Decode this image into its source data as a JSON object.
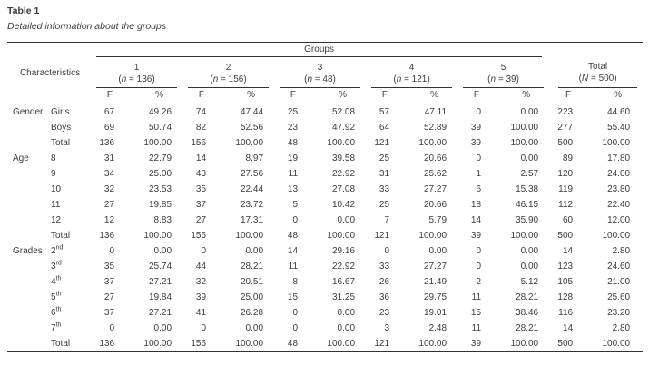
{
  "title": "Table 1",
  "caption": "Detailed information about the groups",
  "header": {
    "characteristics": "Characteristics",
    "groups_label": "Groups",
    "groups": [
      {
        "number": "1",
        "n_parts": [
          "(",
          "n",
          " = 136)"
        ]
      },
      {
        "number": "2",
        "n_parts": [
          "(",
          "n",
          " = 156)"
        ]
      },
      {
        "number": "3",
        "n_parts": [
          "(",
          "n",
          " = 48)"
        ]
      },
      {
        "number": "4",
        "n_parts": [
          "(",
          "n",
          " = 121)"
        ]
      },
      {
        "number": "5",
        "n_parts": [
          "(",
          "n",
          " = 39)"
        ]
      }
    ],
    "total": {
      "label": "Total",
      "n_parts": [
        "(",
        "N",
        " = 500)"
      ]
    },
    "f_label": "F",
    "pct_label": "%"
  },
  "sections": [
    {
      "name": "Gender",
      "rows": [
        {
          "label": "Girls",
          "values": [
            "67",
            "49.26",
            "74",
            "47.44",
            "25",
            "52.08",
            "57",
            "47.11",
            "0",
            "0.00",
            "223",
            "44.60"
          ]
        },
        {
          "label": "Boys",
          "values": [
            "69",
            "50.74",
            "82",
            "52.56",
            "23",
            "47.92",
            "64",
            "52.89",
            "39",
            "100.00",
            "277",
            "55.40"
          ]
        },
        {
          "label": "Total",
          "values": [
            "136",
            "100.00",
            "156",
            "100.00",
            "48",
            "100.00",
            "121",
            "100.00",
            "39",
            "100.00",
            "500",
            "100.00"
          ]
        }
      ]
    },
    {
      "name": "Age",
      "rows": [
        {
          "label": "8",
          "values": [
            "31",
            "22.79",
            "14",
            "8.97",
            "19",
            "39.58",
            "25",
            "20.66",
            "0",
            "0.00",
            "89",
            "17.80"
          ]
        },
        {
          "label": "9",
          "values": [
            "34",
            "25.00",
            "43",
            "27.56",
            "11",
            "22.92",
            "31",
            "25.62",
            "1",
            "2.57",
            "120",
            "24.00"
          ]
        },
        {
          "label": "10",
          "values": [
            "32",
            "23.53",
            "35",
            "22.44",
            "13",
            "27.08",
            "33",
            "27.27",
            "6",
            "15.38",
            "119",
            "23.80"
          ]
        },
        {
          "label": "11",
          "values": [
            "27",
            "19.85",
            "37",
            "23.72",
            "5",
            "10.42",
            "25",
            "20.66",
            "18",
            "46.15",
            "112",
            "22.40"
          ]
        },
        {
          "label": "12",
          "values": [
            "12",
            "8.83",
            "27",
            "17.31",
            "0",
            "0.00",
            "7",
            "5.79",
            "14",
            "35.90",
            "60",
            "12.00"
          ]
        },
        {
          "label": "Total",
          "values": [
            "136",
            "100.00",
            "156",
            "100.00",
            "48",
            "100.00",
            "121",
            "100.00",
            "39",
            "100.00",
            "500",
            "100.00"
          ]
        }
      ]
    },
    {
      "name": "Grades",
      "rows": [
        {
          "label": "2",
          "sup": "nd",
          "values": [
            "0",
            "0.00",
            "0",
            "0.00",
            "14",
            "29.16",
            "0",
            "0.00",
            "0",
            "0.00",
            "14",
            "2.80"
          ]
        },
        {
          "label": "3",
          "sup": "rd",
          "values": [
            "35",
            "25.74",
            "44",
            "28.21",
            "11",
            "22.92",
            "33",
            "27.27",
            "0",
            "0.00",
            "123",
            "24.60"
          ]
        },
        {
          "label": "4",
          "sup": "th",
          "values": [
            "37",
            "27.21",
            "32",
            "20.51",
            "8",
            "16.67",
            "26",
            "21.49",
            "2",
            "5.12",
            "105",
            "21.00"
          ]
        },
        {
          "label": "5",
          "sup": "th",
          "values": [
            "27",
            "19.84",
            "39",
            "25.00",
            "15",
            "31.25",
            "36",
            "29.75",
            "11",
            "28.21",
            "128",
            "25.60"
          ]
        },
        {
          "label": "6",
          "sup": "th",
          "values": [
            "37",
            "27.21",
            "41",
            "26.28",
            "0",
            "0.00",
            "23",
            "19.01",
            "15",
            "38.46",
            "116",
            "23.20"
          ]
        },
        {
          "label": "7",
          "sup": "th",
          "values": [
            "0",
            "0.00",
            "0",
            "0.00",
            "0",
            "0.00",
            "3",
            "2.48",
            "11",
            "28.21",
            "14",
            "2.80"
          ]
        },
        {
          "label": "Total",
          "values": [
            "136",
            "100.00",
            "156",
            "100.00",
            "48",
            "100.00",
            "121",
            "100.00",
            "39",
            "100.00",
            "500",
            "100.00"
          ]
        }
      ]
    }
  ]
}
